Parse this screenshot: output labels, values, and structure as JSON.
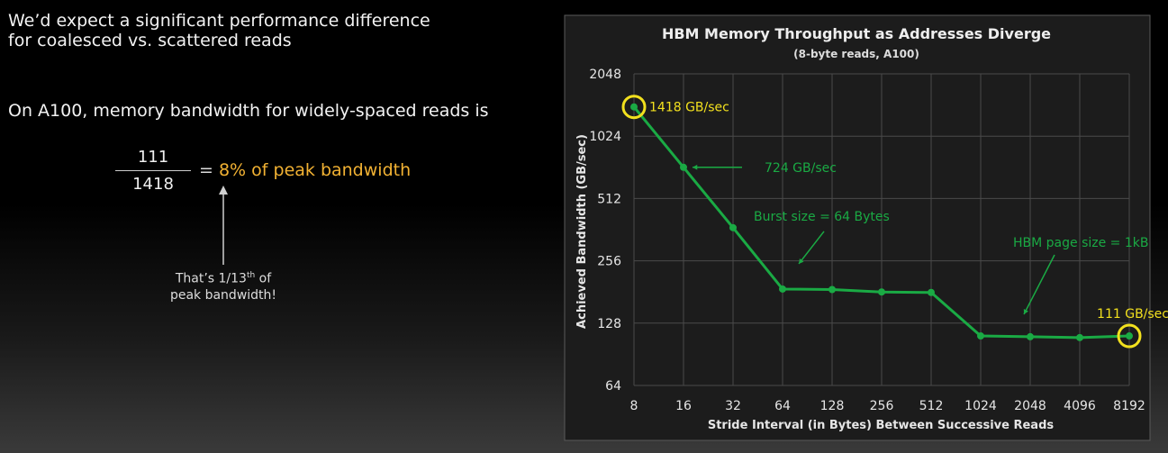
{
  "slide": {
    "headline_line1": "We’d expect a significant performance difference",
    "headline_line2": "for coalesced vs. scattered reads",
    "subheading": "On A100, memory bandwidth for widely-spaced reads is",
    "fraction_numerator": "111",
    "fraction_denominator": "1418",
    "equals_sign": "=",
    "equals_text": "8% of peak bandwidth",
    "note_prefix": "That’s 1/13",
    "note_sup": "th",
    "note_suffix": " of",
    "note_line2": "peak bandwidth!",
    "accent_color": "#f2b233"
  },
  "chart_data": {
    "type": "line",
    "title": "HBM Memory Throughput as Addresses Diverge",
    "subtitle": "(8-byte reads, A100)",
    "xlabel": "Stride Interval (in Bytes) Between Successive Reads",
    "ylabel": "Achieved Bandwidth (GB/sec)",
    "x_scale": "log2",
    "y_scale": "log2",
    "x": [
      8,
      16,
      32,
      64,
      128,
      256,
      512,
      1024,
      2048,
      4096,
      8192
    ],
    "x_ticks": [
      "8",
      "16",
      "32",
      "64",
      "128",
      "256",
      "512",
      "1024",
      "2048",
      "4096",
      "8192"
    ],
    "y_ticks": [
      64,
      128,
      256,
      512,
      1024,
      2048
    ],
    "ylim": [
      64,
      2048
    ],
    "grid": true,
    "series": [
      {
        "values": [
          1418,
          724,
          370,
          187,
          186,
          181,
          180,
          111,
          110,
          109,
          111
        ],
        "color": "#1aaa44"
      }
    ],
    "annotations": [
      {
        "id": "peak",
        "text": "1418 GB/sec",
        "x": 8,
        "y": 1418,
        "color": "#f2e01e",
        "circled": true
      },
      {
        "id": "stride16",
        "text": "724 GB/sec",
        "x": 16,
        "y": 724,
        "color": "#1aaa44"
      },
      {
        "id": "burst",
        "text": "Burst size = 64 Bytes",
        "x": 64,
        "y": 187,
        "color": "#1aaa44"
      },
      {
        "id": "page",
        "text": "HBM page size = 1kB",
        "x": 1024,
        "y": 111,
        "color": "#1aaa44"
      },
      {
        "id": "low",
        "text": "111 GB/sec",
        "x": 8192,
        "y": 111,
        "color": "#f2e01e",
        "circled": true
      }
    ],
    "colors": {
      "background": "#1c1c1c",
      "grid": "#4a4a4a",
      "axis_text": "#e6e6e6"
    }
  }
}
